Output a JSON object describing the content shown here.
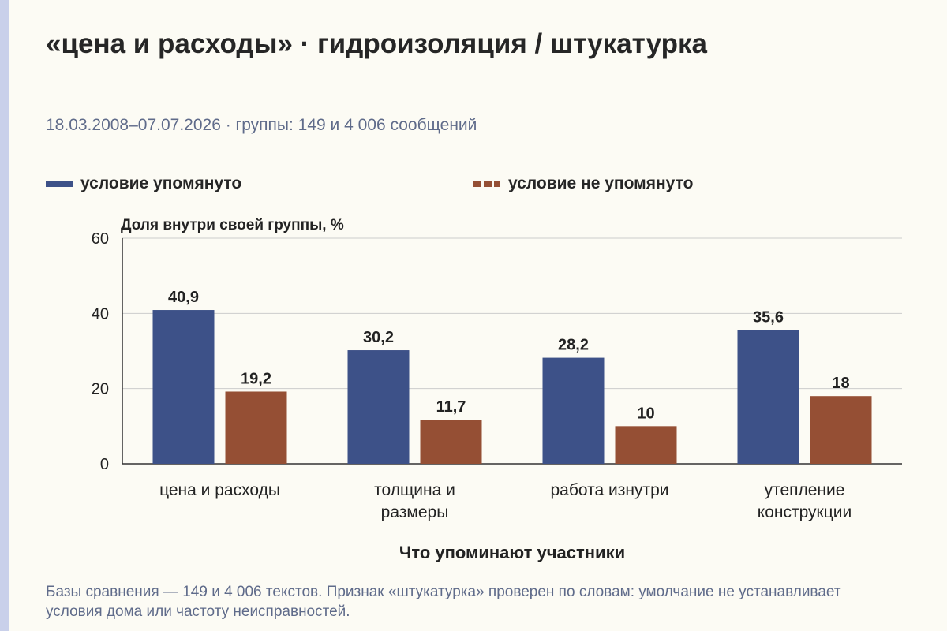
{
  "header": {
    "title": "«цена и расходы» · гидроизоляция / штукатурка",
    "subtitle": "18.03.2008–07.07.2026 · группы: 149 и 4 006 сообщений"
  },
  "legend": [
    {
      "label": "условие упомянуто"
    },
    {
      "label": "условие не упомянуто"
    }
  ],
  "colors": {
    "mentioned": "#3d5188",
    "not_mentioned": "#954f34",
    "grid": "#cccccc",
    "axis": "#333333",
    "text": "#222222"
  },
  "chart_data": {
    "type": "bar",
    "title": "«цена и расходы» · гидроизоляция / штукатурка",
    "subtitle": "18.03.2008–07.07.2026 · группы: 149 и 4 006 сообщений",
    "ylabel": "Доля внутри своей группы, %",
    "xlabel": "Что упоминают участники",
    "ylim": [
      0,
      60
    ],
    "yticks": [
      0,
      20,
      40,
      60
    ],
    "grid": true,
    "legend_position": "top",
    "categories": [
      [
        "цена и расходы"
      ],
      [
        "толщина и",
        "размеры"
      ],
      [
        "работа изнутри"
      ],
      [
        "утепление",
        "конструкции"
      ]
    ],
    "series": [
      {
        "name": "условие упомянуто",
        "values": [
          40.9,
          30.2,
          28.2,
          35.6
        ],
        "labels": [
          "40,9",
          "30,2",
          "28,2",
          "35,6"
        ]
      },
      {
        "name": "условие не упомянуто",
        "values": [
          19.2,
          11.7,
          10,
          18
        ],
        "labels": [
          "19,2",
          "11,7",
          "10",
          "18"
        ]
      }
    ]
  },
  "footnote": "Базы сравнения — 149 и 4 006 текстов. Признак «штукатурка» проверен по словам: умолчание не устанавливает условия дома или частоту неисправностей."
}
